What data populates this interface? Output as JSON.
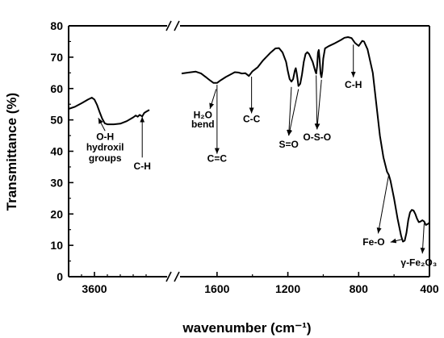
{
  "chart_data": {
    "type": "line",
    "xlabel": "wavenumber (cm⁻¹)",
    "ylabel": "Transmittance (%)",
    "xlim_segments": [
      [
        4000,
        2500
      ],
      [
        1800,
        400
      ]
    ],
    "ylim": [
      0,
      80
    ],
    "x_reversed": true,
    "axis_break": true,
    "grid": false,
    "x_ticks": [
      {
        "value": 3600,
        "label": "3600"
      },
      {
        "value": 1600,
        "label": "1600"
      },
      {
        "value": 1200,
        "label": "1200"
      },
      {
        "value": 800,
        "label": "800"
      },
      {
        "value": 400,
        "label": "400"
      }
    ],
    "y_ticks": [
      {
        "value": 0,
        "label": "0"
      },
      {
        "value": 10,
        "label": "10"
      },
      {
        "value": 20,
        "label": "20"
      },
      {
        "value": 30,
        "label": "30"
      },
      {
        "value": 40,
        "label": "40"
      },
      {
        "value": 50,
        "label": "50"
      },
      {
        "value": 60,
        "label": "60"
      },
      {
        "value": 70,
        "label": "70"
      },
      {
        "value": 80,
        "label": "80"
      }
    ],
    "series": [
      {
        "segment": 0,
        "points": [
          [
            4000,
            53.5
          ],
          [
            3900,
            54.2
          ],
          [
            3800,
            55.3
          ],
          [
            3700,
            56.5
          ],
          [
            3640,
            57.1
          ],
          [
            3600,
            56.5
          ],
          [
            3560,
            54.8
          ],
          [
            3520,
            52.5
          ],
          [
            3480,
            50.4
          ],
          [
            3440,
            48.9
          ],
          [
            3400,
            48.6
          ],
          [
            3300,
            48.6
          ],
          [
            3200,
            48.8
          ],
          [
            3100,
            49.6
          ],
          [
            3000,
            50.8
          ],
          [
            2960,
            51.4
          ],
          [
            2930,
            51.0
          ],
          [
            2900,
            51.6
          ],
          [
            2860,
            51.1
          ],
          [
            2830,
            52.2
          ],
          [
            2800,
            52.6
          ],
          [
            2750,
            53.2
          ]
        ]
      },
      {
        "segment": 1,
        "points": [
          [
            1800,
            64.8
          ],
          [
            1760,
            65.1
          ],
          [
            1720,
            65.4
          ],
          [
            1690,
            64.8
          ],
          [
            1660,
            63.5
          ],
          [
            1640,
            62.6
          ],
          [
            1620,
            61.8
          ],
          [
            1600,
            61.8
          ],
          [
            1580,
            62.6
          ],
          [
            1550,
            63.7
          ],
          [
            1520,
            64.6
          ],
          [
            1500,
            65.2
          ],
          [
            1480,
            65.1
          ],
          [
            1460,
            64.8
          ],
          [
            1440,
            64.9
          ],
          [
            1420,
            64.0
          ],
          [
            1400,
            65.5
          ],
          [
            1370,
            66.8
          ],
          [
            1340,
            69.0
          ],
          [
            1300,
            71.3
          ],
          [
            1270,
            72.8
          ],
          [
            1250,
            72.9
          ],
          [
            1230,
            71.5
          ],
          [
            1210,
            68.5
          ],
          [
            1200,
            65.5
          ],
          [
            1190,
            63.0
          ],
          [
            1180,
            62.2
          ],
          [
            1170,
            63.0
          ],
          [
            1160,
            65.8
          ],
          [
            1155,
            66.5
          ],
          [
            1150,
            65.0
          ],
          [
            1145,
            63.0
          ],
          [
            1140,
            60.8
          ],
          [
            1130,
            61.5
          ],
          [
            1120,
            64.5
          ],
          [
            1110,
            68.5
          ],
          [
            1100,
            71.0
          ],
          [
            1090,
            71.6
          ],
          [
            1080,
            71.0
          ],
          [
            1060,
            68.5
          ],
          [
            1045,
            65.5
          ],
          [
            1040,
            64.8
          ],
          [
            1035,
            67.0
          ],
          [
            1030,
            71.5
          ],
          [
            1025,
            72.3
          ],
          [
            1020,
            69.0
          ],
          [
            1015,
            64.8
          ],
          [
            1010,
            63.6
          ],
          [
            1005,
            65.5
          ],
          [
            1000,
            69.5
          ],
          [
            990,
            72.8
          ],
          [
            970,
            73.5
          ],
          [
            940,
            74.3
          ],
          [
            900,
            75.5
          ],
          [
            880,
            76.2
          ],
          [
            860,
            76.4
          ],
          [
            840,
            76.1
          ],
          [
            820,
            74.5
          ],
          [
            800,
            73.6
          ],
          [
            790,
            74.4
          ],
          [
            780,
            75.2
          ],
          [
            770,
            75.0
          ],
          [
            750,
            72.5
          ],
          [
            720,
            65.0
          ],
          [
            700,
            55.0
          ],
          [
            680,
            45.0
          ],
          [
            660,
            38.0
          ],
          [
            640,
            33.5
          ],
          [
            630,
            32.5
          ],
          [
            620,
            30.5
          ],
          [
            600,
            25.0
          ],
          [
            580,
            18.5
          ],
          [
            560,
            13.0
          ],
          [
            550,
            11.2
          ],
          [
            540,
            11.5
          ],
          [
            530,
            14.0
          ],
          [
            520,
            18.0
          ],
          [
            510,
            20.5
          ],
          [
            500,
            21.3
          ],
          [
            490,
            21.1
          ],
          [
            480,
            20.0
          ],
          [
            470,
            18.5
          ],
          [
            460,
            17.4
          ],
          [
            450,
            17.6
          ],
          [
            440,
            18.0
          ],
          [
            430,
            17.6
          ],
          [
            420,
            16.5
          ],
          [
            410,
            16.8
          ],
          [
            400,
            17.2
          ]
        ]
      }
    ],
    "annotations": [
      {
        "text": "O-H",
        "x": 3435,
        "y": 43.6
      },
      {
        "text": "hydroxil",
        "x": 3435,
        "y": 40.2
      },
      {
        "text": "groups",
        "x": 3435,
        "y": 36.8
      },
      {
        "text": "C-H",
        "x": 2860,
        "y": 34.2
      },
      {
        "text": "H₂O",
        "x": 1680,
        "y": 50.6
      },
      {
        "text": "bend",
        "x": 1680,
        "y": 47.6
      },
      {
        "text": "C=C",
        "x": 1600,
        "y": 36.7
      },
      {
        "text": "C-C",
        "x": 1405,
        "y": 49.2
      },
      {
        "text": "S=O",
        "x": 1195,
        "y": 41.2
      },
      {
        "text": "O-S-O",
        "x": 1035,
        "y": 43.5
      },
      {
        "text": "C-H",
        "x": 830,
        "y": 60.2
      },
      {
        "text": "Fe-O",
        "x": 715,
        "y": 10.0
      },
      {
        "text": "γ-Fe₂O₃",
        "x": 460,
        "y": 3.5
      }
    ],
    "arrows": [
      {
        "from": [
          3435,
          46.5
        ],
        "to": [
          3540,
          50.6
        ]
      },
      {
        "from": [
          2860,
          38.0
        ],
        "to": [
          2860,
          51.0
        ]
      },
      {
        "from": [
          1605,
          59.8
        ],
        "to": [
          1640,
          53.5
        ]
      },
      {
        "from": [
          1600,
          61.2
        ],
        "to": [
          1600,
          39.2
        ]
      },
      {
        "from": [
          1405,
          63.8
        ],
        "to": [
          1405,
          52.1
        ]
      },
      {
        "from": [
          1180,
          60.5
        ],
        "to": [
          1195,
          45.0
        ]
      },
      {
        "from": [
          1140,
          59.8
        ],
        "to": [
          1195,
          45.0
        ]
      },
      {
        "from": [
          1040,
          64.2
        ],
        "to": [
          1035,
          47.0
        ]
      },
      {
        "from": [
          1010,
          62.8
        ],
        "to": [
          1035,
          47.0
        ]
      },
      {
        "from": [
          830,
          74.0
        ],
        "to": [
          830,
          63.6
        ]
      },
      {
        "from": [
          630,
          32.5
        ],
        "to": [
          690,
          13.8
        ]
      },
      {
        "from": [
          550,
          12.0
        ],
        "to": [
          620,
          11.0
        ]
      },
      {
        "from": [
          430,
          17.0
        ],
        "to": [
          440,
          7.4
        ]
      }
    ]
  }
}
